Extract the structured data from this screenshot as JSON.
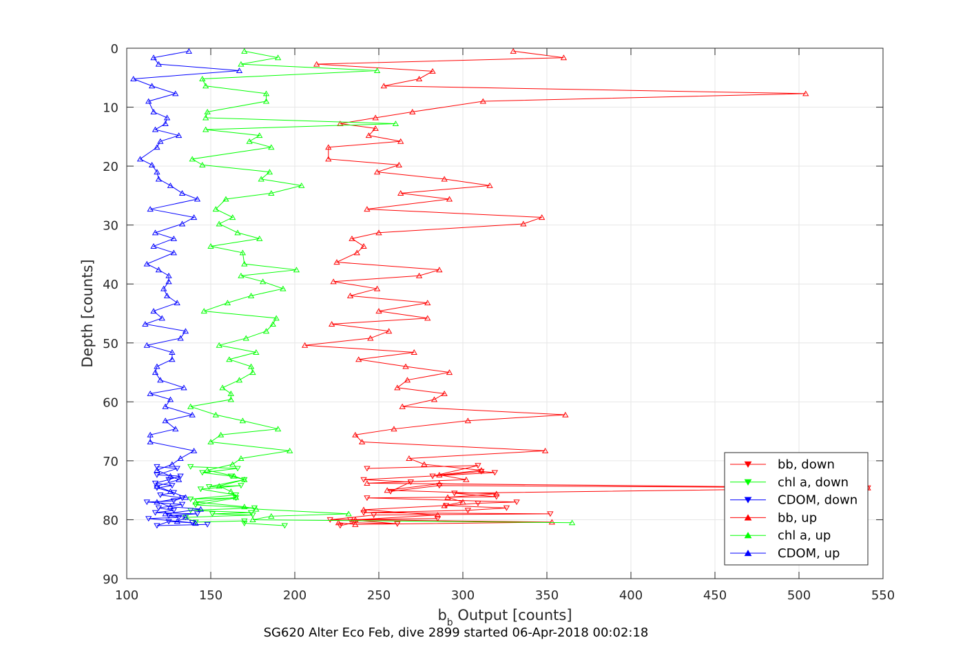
{
  "chart_data": {
    "type": "line",
    "xlabel_main": "b",
    "xlabel_sub": "b",
    "xlabel_rest": " Output [counts]",
    "ylabel": "Depth [counts]",
    "caption": "SG620 Alter Eco Feb, dive 2899 started 06-Apr-2018 00:02:18",
    "xlim": [
      100,
      550
    ],
    "ylim": [
      0,
      90
    ],
    "y_reversed": true,
    "grid": true,
    "legend_position": "bottom-right",
    "xticks": [
      100,
      150,
      200,
      250,
      300,
      350,
      400,
      450,
      500,
      550
    ],
    "xtick_labels": [
      "100",
      "150",
      "200",
      "250",
      "300",
      "350",
      "400",
      "450",
      "500",
      "550"
    ],
    "yticks": [
      0,
      10,
      20,
      30,
      40,
      50,
      60,
      70,
      80,
      90
    ],
    "ytick_labels": [
      "0",
      "10",
      "20",
      "30",
      "40",
      "50",
      "60",
      "70",
      "80",
      "90"
    ],
    "series": [
      {
        "name": "bb, down",
        "color": "#ff0000",
        "marker": "triangle-down",
        "points": [
          [
            227,
            81
          ],
          [
            235,
            80.5
          ],
          [
            261,
            80.7
          ],
          [
            233,
            80
          ],
          [
            285,
            79.8
          ],
          [
            221,
            80
          ],
          [
            247,
            79.2
          ],
          [
            352,
            79
          ],
          [
            241,
            78.8
          ],
          [
            303,
            78.4
          ],
          [
            326,
            78
          ],
          [
            290,
            77.6
          ],
          [
            309,
            77.2
          ],
          [
            332,
            77
          ],
          [
            243,
            76.3
          ],
          [
            320,
            76.1
          ],
          [
            295,
            75.5
          ],
          [
            541,
            74.6
          ],
          [
            286,
            74.2
          ],
          [
            257,
            75.2
          ],
          [
            269,
            73.6
          ],
          [
            241,
            73.2
          ],
          [
            319,
            72
          ],
          [
            311,
            71.8
          ],
          [
            282,
            72.6
          ],
          [
            309,
            70.8
          ],
          [
            243,
            71.3
          ]
        ]
      },
      {
        "name": "chl a, down",
        "color": "#00ff00",
        "marker": "triangle-down",
        "points": [
          [
            194,
            81
          ],
          [
            170,
            80.6
          ],
          [
            170,
            80.2
          ],
          [
            141,
            80.4
          ],
          [
            135,
            79.6
          ],
          [
            175,
            79.2
          ],
          [
            151,
            79
          ],
          [
            174,
            78.8
          ],
          [
            138,
            78.4
          ],
          [
            176,
            78
          ],
          [
            141,
            77.5
          ],
          [
            165,
            76.3
          ],
          [
            138,
            76.5
          ],
          [
            165,
            75.8
          ],
          [
            144,
            74.8
          ],
          [
            168,
            74.2
          ],
          [
            149,
            74.4
          ],
          [
            170,
            73.2
          ],
          [
            162,
            72.6
          ],
          [
            145,
            72
          ],
          [
            166,
            71.3
          ],
          [
            138,
            71
          ]
        ]
      },
      {
        "name": "CDOM, down",
        "color": "#0000ff",
        "marker": "triangle-down",
        "points": [
          [
            148,
            80.8
          ],
          [
            118,
            81
          ],
          [
            125,
            80.3
          ],
          [
            139,
            80.5
          ],
          [
            113,
            79.8
          ],
          [
            131,
            79.6
          ],
          [
            125,
            79.3
          ],
          [
            142,
            79
          ],
          [
            117,
            78.8
          ],
          [
            128,
            78.4
          ],
          [
            119,
            78
          ],
          [
            133,
            77.4
          ],
          [
            112,
            77
          ],
          [
            128,
            76.8
          ],
          [
            133,
            76.3
          ],
          [
            120,
            75.8
          ],
          [
            128,
            75.4
          ],
          [
            118,
            74.6
          ],
          [
            127,
            74.2
          ],
          [
            117,
            73.8
          ],
          [
            125,
            73.2
          ],
          [
            132,
            72.6
          ],
          [
            118,
            72.4
          ],
          [
            130,
            71.3
          ],
          [
            118,
            71
          ]
        ]
      },
      {
        "name": "bb, up",
        "color": "#ff0000",
        "marker": "triangle-up",
        "points": [
          [
            330,
            0.5
          ],
          [
            360,
            1.6
          ],
          [
            213,
            2.7
          ],
          [
            282,
            3.9
          ],
          [
            274,
            5.2
          ],
          [
            253,
            6.4
          ],
          [
            504,
            7.7
          ],
          [
            312,
            9.0
          ],
          [
            270,
            10.8
          ],
          [
            248,
            11.8
          ],
          [
            227,
            12.8
          ],
          [
            248,
            13.6
          ],
          [
            244,
            14.8
          ],
          [
            263,
            15.8
          ],
          [
            220,
            16.8
          ],
          [
            220,
            18.8
          ],
          [
            262,
            19.8
          ],
          [
            249,
            21.0
          ],
          [
            289,
            22.2
          ],
          [
            316,
            23.3
          ],
          [
            263,
            24.6
          ],
          [
            292,
            25.6
          ],
          [
            243,
            27.3
          ],
          [
            347,
            28.7
          ],
          [
            336,
            29.8
          ],
          [
            250,
            31.3
          ],
          [
            234,
            32.3
          ],
          [
            241,
            33.6
          ],
          [
            237,
            34.7
          ],
          [
            225,
            36.3
          ],
          [
            286,
            37.6
          ],
          [
            274,
            38.6
          ],
          [
            223,
            39.6
          ],
          [
            249,
            40.8
          ],
          [
            233,
            42.0
          ],
          [
            279,
            43.2
          ],
          [
            250,
            44.6
          ],
          [
            279,
            45.8
          ],
          [
            222,
            46.8
          ],
          [
            256,
            48.0
          ],
          [
            245,
            49.2
          ],
          [
            206,
            50.4
          ],
          [
            271,
            51.6
          ],
          [
            238,
            52.8
          ],
          [
            266,
            54.0
          ],
          [
            292,
            55.0
          ],
          [
            267,
            56.3
          ],
          [
            261,
            57.6
          ],
          [
            289,
            58.6
          ],
          [
            283,
            59.6
          ],
          [
            264,
            60.8
          ],
          [
            361,
            62.2
          ],
          [
            303,
            63.2
          ],
          [
            259,
            64.6
          ],
          [
            236,
            65.6
          ],
          [
            240,
            66.8
          ],
          [
            349,
            68.3
          ],
          [
            268,
            69.6
          ],
          [
            277,
            70.6
          ],
          [
            311,
            71.6
          ],
          [
            286,
            72.4
          ],
          [
            302,
            73.2
          ],
          [
            243,
            73.8
          ],
          [
            541,
            74.6
          ],
          [
            286,
            73.9
          ],
          [
            255,
            75.0
          ],
          [
            320,
            75.6
          ],
          [
            291,
            76.2
          ],
          [
            300,
            77.0
          ],
          [
            289,
            77.6
          ],
          [
            241,
            78.3
          ],
          [
            285,
            79.2
          ],
          [
            236,
            80.0
          ],
          [
            353,
            80.4
          ],
          [
            236,
            80.8
          ],
          [
            226,
            80.5
          ]
        ]
      },
      {
        "name": "chl a, up",
        "color": "#00ff00",
        "marker": "triangle-up",
        "points": [
          [
            170,
            0.5
          ],
          [
            190,
            1.6
          ],
          [
            168,
            2.7
          ],
          [
            249,
            3.8
          ],
          [
            145,
            5.2
          ],
          [
            147,
            6.4
          ],
          [
            183,
            7.7
          ],
          [
            183,
            9.0
          ],
          [
            148,
            10.8
          ],
          [
            147,
            11.8
          ],
          [
            260,
            12.8
          ],
          [
            147,
            13.8
          ],
          [
            179,
            14.8
          ],
          [
            173,
            15.8
          ],
          [
            186,
            16.8
          ],
          [
            139,
            18.8
          ],
          [
            145,
            19.8
          ],
          [
            185,
            21.0
          ],
          [
            180,
            22.2
          ],
          [
            204,
            23.3
          ],
          [
            186,
            24.6
          ],
          [
            159,
            25.6
          ],
          [
            153,
            27.3
          ],
          [
            163,
            28.7
          ],
          [
            155,
            29.8
          ],
          [
            166,
            31.3
          ],
          [
            179,
            32.3
          ],
          [
            150,
            33.6
          ],
          [
            169,
            34.7
          ],
          [
            170,
            36.6
          ],
          [
            201,
            37.6
          ],
          [
            168,
            38.6
          ],
          [
            181,
            39.6
          ],
          [
            193,
            40.8
          ],
          [
            174,
            42.0
          ],
          [
            160,
            43.2
          ],
          [
            146,
            44.6
          ],
          [
            189,
            45.8
          ],
          [
            187,
            46.8
          ],
          [
            183,
            48.0
          ],
          [
            171,
            49.2
          ],
          [
            155,
            50.4
          ],
          [
            177,
            51.6
          ],
          [
            161,
            52.8
          ],
          [
            174,
            54.0
          ],
          [
            175,
            55.0
          ],
          [
            167,
            56.3
          ],
          [
            157,
            57.6
          ],
          [
            162,
            58.6
          ],
          [
            162,
            59.6
          ],
          [
            138,
            60.8
          ],
          [
            153,
            62.2
          ],
          [
            169,
            63.2
          ],
          [
            190,
            64.6
          ],
          [
            156,
            65.6
          ],
          [
            150,
            66.8
          ],
          [
            197,
            68.3
          ],
          [
            168,
            69.6
          ],
          [
            163,
            70.6
          ],
          [
            148,
            71.6
          ],
          [
            164,
            72.6
          ],
          [
            170,
            73.2
          ],
          [
            155,
            74.3
          ],
          [
            162,
            75.2
          ],
          [
            165,
            76.2
          ],
          [
            141,
            77.0
          ],
          [
            170,
            77.8
          ],
          [
            177,
            78.2
          ],
          [
            232,
            79.0
          ],
          [
            186,
            79.4
          ],
          [
            175,
            80.0
          ],
          [
            365,
            80.5
          ]
        ]
      },
      {
        "name": "CDOM, up",
        "color": "#0000ff",
        "marker": "triangle-up",
        "points": [
          [
            137,
            0.5
          ],
          [
            116,
            1.6
          ],
          [
            119,
            2.7
          ],
          [
            167,
            3.8
          ],
          [
            104,
            5.2
          ],
          [
            115,
            6.4
          ],
          [
            129,
            7.7
          ],
          [
            113,
            9.0
          ],
          [
            116,
            10.8
          ],
          [
            124,
            11.8
          ],
          [
            123,
            12.8
          ],
          [
            117,
            13.8
          ],
          [
            131,
            14.8
          ],
          [
            120,
            15.8
          ],
          [
            118,
            16.8
          ],
          [
            108,
            18.8
          ],
          [
            115,
            19.8
          ],
          [
            118,
            21.0
          ],
          [
            119,
            22.2
          ],
          [
            126,
            23.3
          ],
          [
            133,
            24.6
          ],
          [
            142,
            25.6
          ],
          [
            114,
            27.3
          ],
          [
            140,
            28.7
          ],
          [
            133,
            29.8
          ],
          [
            117,
            31.3
          ],
          [
            128,
            32.3
          ],
          [
            116,
            33.6
          ],
          [
            128,
            34.7
          ],
          [
            112,
            36.6
          ],
          [
            119,
            37.6
          ],
          [
            125,
            38.6
          ],
          [
            125,
            39.6
          ],
          [
            122,
            40.8
          ],
          [
            124,
            42.0
          ],
          [
            130,
            43.2
          ],
          [
            116,
            44.6
          ],
          [
            121,
            45.8
          ],
          [
            111,
            46.8
          ],
          [
            135,
            48.0
          ],
          [
            132,
            49.2
          ],
          [
            112,
            50.4
          ],
          [
            127,
            51.6
          ],
          [
            127,
            52.8
          ],
          [
            118,
            54.0
          ],
          [
            117,
            55.0
          ],
          [
            120,
            56.3
          ],
          [
            134,
            57.6
          ],
          [
            114,
            58.6
          ],
          [
            126,
            59.6
          ],
          [
            123,
            60.8
          ],
          [
            139,
            62.2
          ],
          [
            123,
            63.2
          ],
          [
            129,
            64.6
          ],
          [
            114,
            65.6
          ],
          [
            114,
            66.8
          ],
          [
            140,
            68.3
          ],
          [
            132,
            69.6
          ],
          [
            127,
            70.6
          ],
          [
            118,
            71.6
          ],
          [
            126,
            72.6
          ],
          [
            131,
            73.2
          ],
          [
            118,
            74.3
          ],
          [
            126,
            75.2
          ],
          [
            135,
            76.2
          ],
          [
            118,
            77.0
          ],
          [
            126,
            77.8
          ],
          [
            144,
            78.2
          ],
          [
            123,
            79.0
          ],
          [
            135,
            79.6
          ],
          [
            130,
            80.3
          ],
          [
            141,
            80.6
          ]
        ]
      }
    ]
  }
}
